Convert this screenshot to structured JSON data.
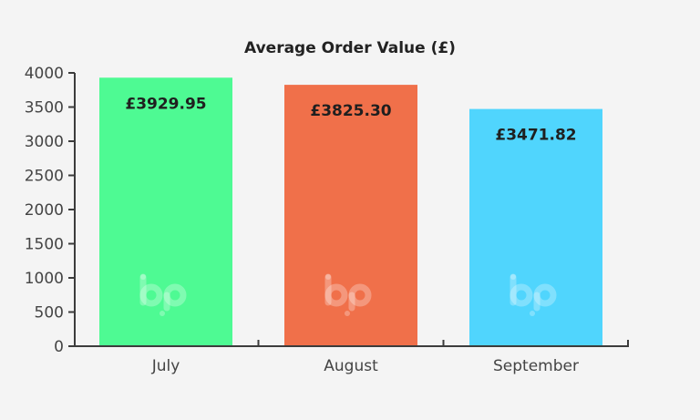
{
  "chart_data": {
    "type": "bar",
    "title": "Average Order Value (£)",
    "xlabel": "",
    "ylabel": "",
    "categories": [
      "July",
      "August",
      "September"
    ],
    "values": [
      3929.95,
      3825.3,
      3471.82
    ],
    "data_labels": [
      "£3929.95",
      "£3825.30",
      "£3471.82"
    ],
    "bar_colors": [
      "#4efa93",
      "#f0704a",
      "#50d5fd"
    ],
    "ylim": [
      0,
      4000
    ],
    "yticks": [
      0,
      500,
      1000,
      1500,
      2000,
      2500,
      3000,
      3500,
      4000
    ],
    "ytick_labels": [
      "0",
      "500",
      "1000",
      "1500",
      "2000",
      "2500",
      "3000",
      "3500",
      "4000"
    ],
    "grid": false,
    "legend": "none",
    "watermark_icon": "bp-logo-icon"
  }
}
